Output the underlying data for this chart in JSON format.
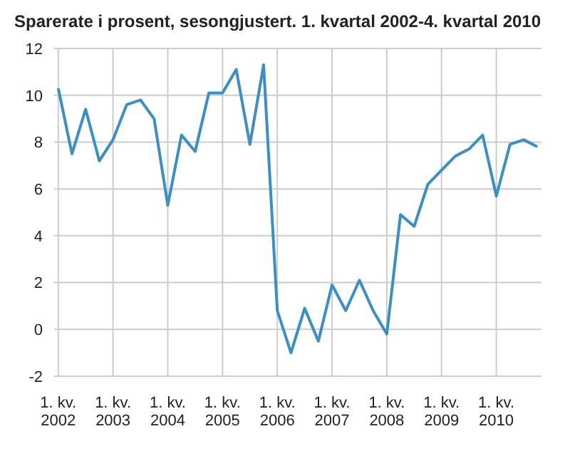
{
  "chart_data": {
    "type": "line",
    "title": "Sparerate i prosent, sesongjustert. 1. kvartal 2002-4. kvartal 2010",
    "categories": [
      "1. kv.\n2002",
      null,
      null,
      null,
      "1. kv.\n2003",
      null,
      null,
      null,
      "1. kv.\n2004",
      null,
      null,
      null,
      "1. kv.\n2005",
      null,
      null,
      null,
      "1. kv.\n2006",
      null,
      null,
      null,
      "1. kv.\n2007",
      null,
      null,
      null,
      "1. kv.\n2008",
      null,
      null,
      null,
      "1. kv.\n2009",
      null,
      null,
      null,
      "1. kv.\n2010",
      null,
      null,
      null
    ],
    "series": [
      {
        "color": "#3a8fc6",
        "values": [
          10.3,
          7.5,
          9.4,
          7.2,
          8.1,
          9.6,
          9.8,
          9.0,
          5.3,
          8.3,
          7.6,
          10.1,
          10.1,
          11.1,
          7.9,
          11.3,
          0.8,
          -1.0,
          0.9,
          -0.5,
          1.9,
          0.8,
          2.1,
          0.8,
          -0.2,
          4.9,
          4.4,
          6.2,
          6.8,
          7.4,
          7.7,
          8.3,
          5.7,
          7.9,
          8.1,
          7.8
        ]
      }
    ],
    "ylim": [
      -2,
      12
    ],
    "yticks": [
      -2,
      0,
      2,
      4,
      6,
      8,
      10,
      12
    ],
    "grid": true,
    "marker": "none",
    "line_style": "solid"
  }
}
